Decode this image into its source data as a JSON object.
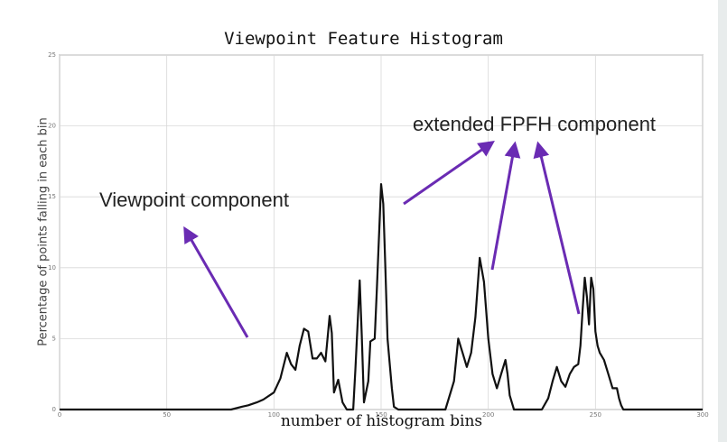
{
  "chart_data": {
    "type": "line",
    "title": "Viewpoint Feature Histogram",
    "xlabel": "number of histogram bins",
    "ylabel": "Percentage of points falling in each bin",
    "xlim": [
      0,
      300
    ],
    "ylim": [
      0,
      25
    ],
    "xticks": [
      0,
      50,
      100,
      150,
      200,
      250,
      300
    ],
    "yticks": [
      0,
      5,
      10,
      15,
      20,
      25
    ],
    "grid": true,
    "series": [
      {
        "color": "#111111",
        "x": [
          0,
          80,
          85,
          88,
          92,
          95,
          100,
          103,
          106,
          108,
          110,
          112,
          114,
          116,
          118,
          120,
          122,
          124,
          126,
          127,
          128,
          130,
          132,
          134,
          136,
          137,
          138,
          140,
          141,
          142,
          144,
          145,
          147,
          148,
          150,
          151,
          152,
          153,
          155,
          156,
          158,
          160,
          180,
          184,
          186,
          188,
          190,
          192,
          194,
          196,
          198,
          200,
          202,
          204,
          206,
          208,
          209,
          210,
          212,
          225,
          228,
          230,
          232,
          234,
          236,
          238,
          240,
          242,
          243,
          244,
          245,
          246,
          247,
          248,
          249,
          250,
          251,
          252,
          254,
          256,
          258,
          260,
          261,
          262,
          263,
          264,
          300
        ],
        "y": [
          0,
          0,
          0.2,
          0.3,
          0.5,
          0.7,
          1.2,
          2.2,
          4.0,
          3.2,
          2.8,
          4.5,
          5.7,
          5.5,
          3.6,
          3.6,
          4.0,
          3.4,
          6.6,
          5.4,
          1.2,
          2.1,
          0.5,
          0,
          0,
          0,
          2.8,
          9.1,
          5.2,
          0.5,
          2.0,
          4.8,
          5.0,
          8.5,
          15.9,
          14.5,
          10.0,
          5.0,
          1.5,
          0.2,
          0,
          0,
          0,
          2.0,
          5.0,
          4.0,
          3.0,
          4.0,
          6.5,
          10.7,
          9.0,
          5.0,
          2.5,
          1.5,
          2.5,
          3.5,
          2.5,
          1.0,
          0,
          0,
          0.8,
          2.0,
          3.0,
          2.0,
          1.6,
          2.5,
          3.0,
          3.2,
          4.5,
          7.0,
          9.3,
          8.0,
          6.0,
          9.3,
          8.5,
          5.5,
          4.5,
          4.0,
          3.5,
          2.5,
          1.5,
          1.5,
          0.8,
          0.3,
          0,
          0,
          0
        ]
      }
    ],
    "annotations": [
      {
        "text": "Viewpoint component"
      },
      {
        "text": "extended FPFH component"
      }
    ],
    "arrow_color": "#6a2bb3"
  }
}
